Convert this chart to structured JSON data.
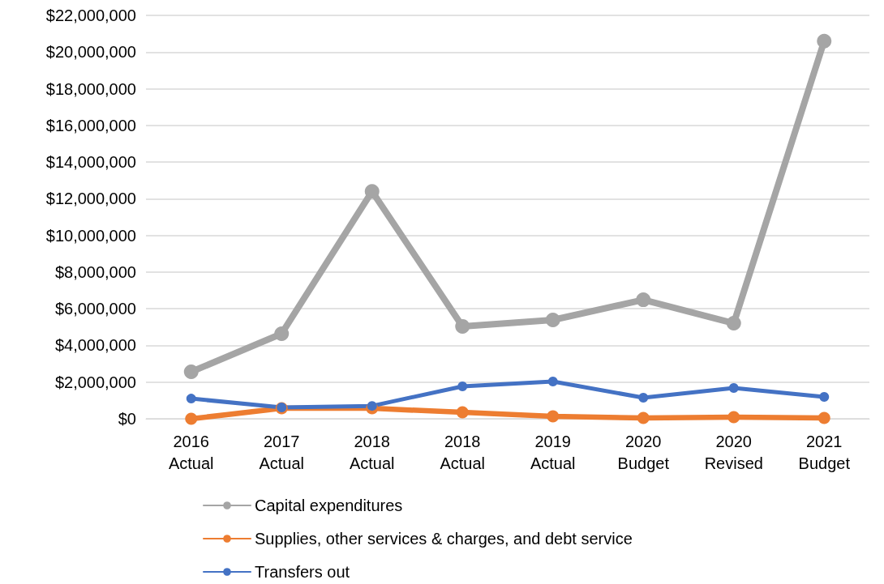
{
  "chart_data": {
    "type": "line",
    "categories": [
      "2016\nActual",
      "2017\nActual",
      "2018\nActual",
      "2018\nActual",
      "2019\nActual",
      "2020\nBudget",
      "2020\nRevised",
      "2021\nBudget"
    ],
    "series": [
      {
        "name": "Capital expenditures",
        "color": "#a5a5a5",
        "values": [
          2560000,
          4640000,
          12400000,
          5040000,
          5390000,
          6490000,
          5210000,
          20600000
        ]
      },
      {
        "name": "Supplies, other services & charges, and debt service",
        "color": "#ed7d31",
        "values": [
          0,
          570000,
          570000,
          350000,
          130000,
          40000,
          90000,
          40000
        ]
      },
      {
        "name": "Transfers out",
        "color": "#4472c4",
        "values": [
          1100000,
          620000,
          700000,
          1770000,
          2030000,
          1150000,
          1680000,
          1190000
        ]
      }
    ],
    "ylim": [
      0,
      22000000
    ],
    "yticks": [
      {
        "value": 0,
        "label": "$0"
      },
      {
        "value": 2000000,
        "label": "$2,000,000"
      },
      {
        "value": 4000000,
        "label": "$4,000,000"
      },
      {
        "value": 6000000,
        "label": "$6,000,000"
      },
      {
        "value": 8000000,
        "label": "$8,000,000"
      },
      {
        "value": 10000000,
        "label": "$10,000,000"
      },
      {
        "value": 12000000,
        "label": "$12,000,000"
      },
      {
        "value": 14000000,
        "label": "$14,000,000"
      },
      {
        "value": 16000000,
        "label": "$16,000,000"
      },
      {
        "value": 18000000,
        "label": "$18,000,000"
      },
      {
        "value": 20000000,
        "label": "$20,000,000"
      },
      {
        "value": 22000000,
        "label": "$22,000,000"
      }
    ],
    "grid": "y",
    "legend": "bottom",
    "marker": "circle",
    "line_style": "solid"
  }
}
